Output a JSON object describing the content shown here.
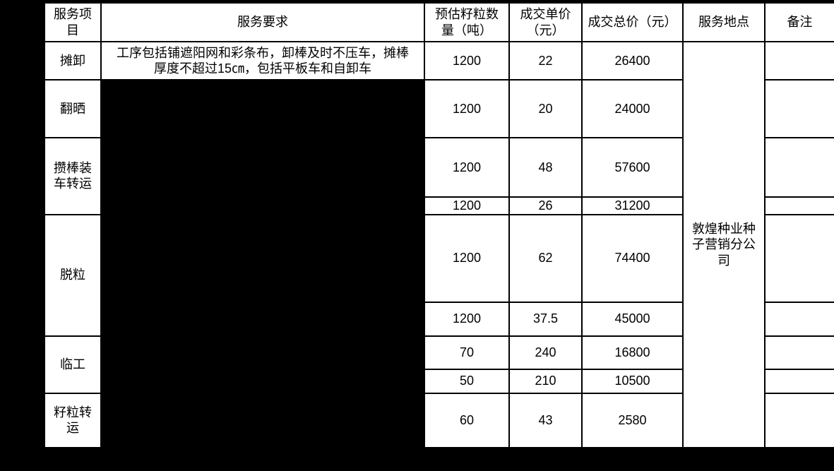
{
  "colors": {
    "page_background": "#000000",
    "cell_background": "#ffffff",
    "text": "#000000",
    "redaction": "#000000",
    "border": "#000000"
  },
  "table": {
    "headers": [
      "服务项目",
      "服务要求",
      "预估籽粒数量（吨）",
      "成交单价（元）",
      "成交总价（元）",
      "服务地点",
      "备注"
    ],
    "service_location": "敦煌种业种子营销分公司",
    "rows": [
      {
        "item": "摊卸",
        "item_rowspan": 1,
        "requirement": "工序包括铺遮阳网和彩条布，卸棒及时不压车，摊棒厚度不超过15㎝，包括平板车和自卸车",
        "redacted": false,
        "quantity": "1200",
        "unit_price": "22",
        "total_price": "26400",
        "remark": ""
      },
      {
        "item": "翻晒",
        "item_rowspan": 1,
        "requirement": "",
        "redacted": true,
        "quantity": "1200",
        "unit_price": "20",
        "total_price": "24000",
        "remark": ""
      },
      {
        "item": "攒棒装车转运",
        "item_rowspan": 2,
        "requirement": "",
        "redacted": true,
        "quantity": "1200",
        "unit_price": "48",
        "total_price": "57600",
        "remark": ""
      },
      {
        "item": null,
        "item_rowspan": 0,
        "requirement": "",
        "redacted": true,
        "quantity": "1200",
        "unit_price": "26",
        "total_price": "31200",
        "remark": ""
      },
      {
        "item": "脱粒",
        "item_rowspan": 2,
        "requirement": "",
        "redacted": true,
        "quantity": "1200",
        "unit_price": "62",
        "total_price": "74400",
        "remark": ""
      },
      {
        "item": null,
        "item_rowspan": 0,
        "requirement": "",
        "redacted": true,
        "quantity": "1200",
        "unit_price": "37.5",
        "total_price": "45000",
        "remark": ""
      },
      {
        "item": "临工",
        "item_rowspan": 2,
        "requirement": "",
        "redacted": true,
        "quantity": "70",
        "unit_price": "240",
        "total_price": "16800",
        "remark": ""
      },
      {
        "item": null,
        "item_rowspan": 0,
        "requirement": "",
        "redacted": true,
        "quantity": "50",
        "unit_price": "210",
        "total_price": "10500",
        "remark": ""
      },
      {
        "item": "籽粒转运",
        "item_rowspan": 1,
        "requirement": "",
        "redacted": true,
        "quantity": "60",
        "unit_price": "43",
        "total_price": "2580",
        "remark": ""
      }
    ]
  }
}
